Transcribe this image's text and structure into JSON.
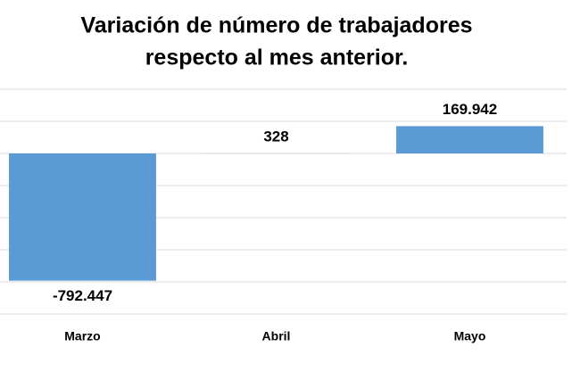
{
  "chart_data": {
    "type": "bar",
    "title": [
      "Variación  de número de trabajadores",
      "respecto al mes anterior."
    ],
    "categories": [
      "Marzo",
      "Abril",
      "Mayo"
    ],
    "values": [
      -792447,
      328,
      169942
    ],
    "value_labels": [
      "-792.447",
      "328",
      "169.942"
    ],
    "color": "#5b9bd5",
    "negative_label_color": "#ff0000",
    "ylim": [
      -1000000,
      400000
    ],
    "yticks": [
      -1000000,
      -800000,
      -600000,
      -400000,
      -200000,
      0,
      200000,
      400000
    ],
    "grid": true
  }
}
